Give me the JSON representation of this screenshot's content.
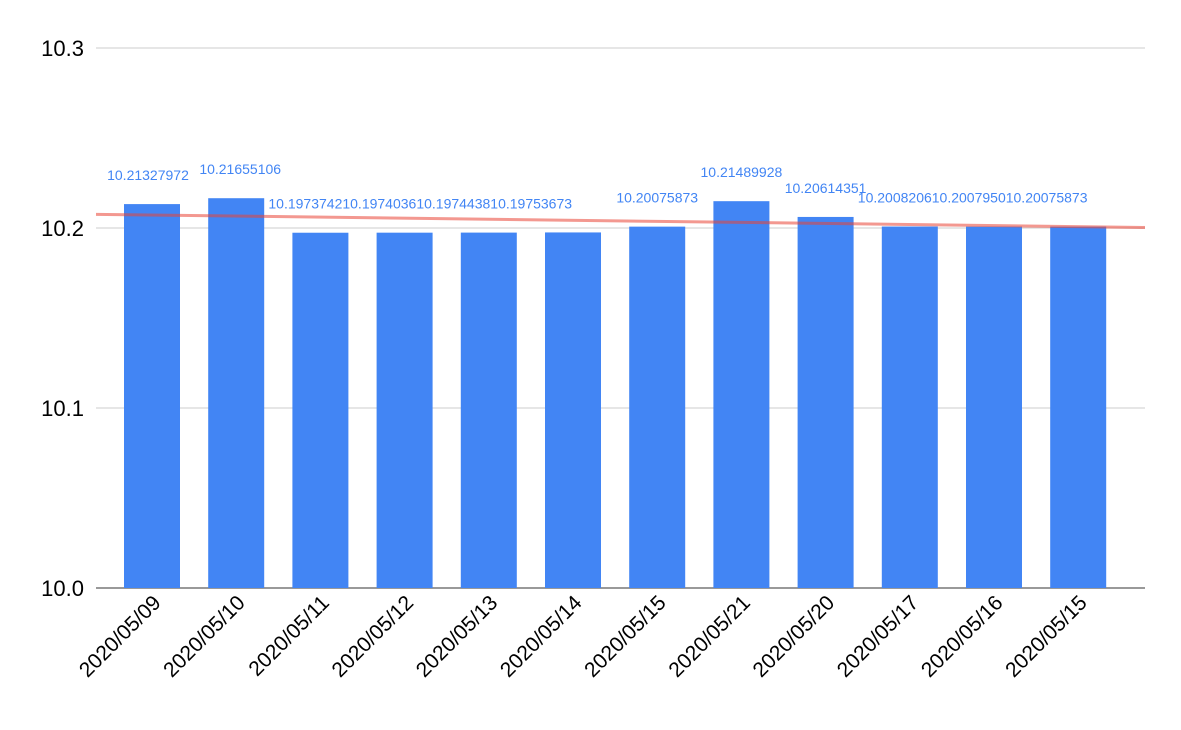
{
  "chart_data": {
    "type": "bar",
    "categories": [
      "2020/05/09",
      "2020/05/10",
      "2020/05/11",
      "2020/05/12",
      "2020/05/13",
      "2020/05/14",
      "2020/05/15",
      "2020/05/21",
      "2020/05/20",
      "2020/05/17",
      "2020/05/16",
      "2020/05/15"
    ],
    "series": [
      {
        "values": [
          10.21327972,
          10.21655106,
          10.19737421,
          10.19740361,
          10.19744381,
          10.19753673,
          10.20075873,
          10.21489928,
          10.20614351,
          10.20082061,
          10.20079501,
          10.20075873
        ],
        "labels": [
          "10.21327972",
          "10.21655106",
          "10.197374210.197403610.197443810.19753673",
          "",
          "",
          "",
          "10.20075873",
          "10.21489928",
          "10.20614351",
          "10.200820610.200795010.20075873",
          "",
          ""
        ],
        "color": "#4285f4"
      }
    ],
    "trendline": {
      "type": "linear",
      "color": "#ea4335",
      "start": 10.2076,
      "end": 10.2003
    },
    "title": "",
    "xlabel": "",
    "ylabel": "",
    "ylim": [
      10.0,
      10.3
    ],
    "yticks": [
      "10.0",
      "10.1",
      "10.2",
      "10.3"
    ],
    "ytick_values": [
      10.0,
      10.1,
      10.2,
      10.3
    ],
    "grid": true,
    "legend": "none"
  }
}
